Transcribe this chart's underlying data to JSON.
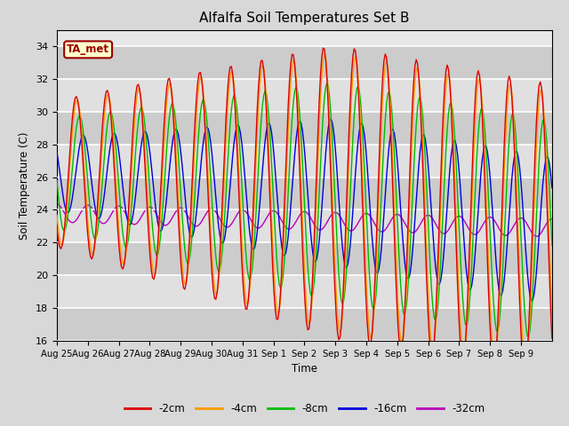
{
  "title": "Alfalfa Soil Temperatures Set B",
  "xlabel": "Time",
  "ylabel": "Soil Temperature (C)",
  "ylim": [
    16,
    35
  ],
  "yticks": [
    16,
    18,
    20,
    22,
    24,
    26,
    28,
    30,
    32,
    34
  ],
  "bg_color": "#d8d8d8",
  "plot_bg_color": "#e8e8e8",
  "line_colors": {
    "-2cm": "#dd0000",
    "-4cm": "#ff9900",
    "-8cm": "#00bb00",
    "-16cm": "#0000dd",
    "-32cm": "#bb00bb"
  },
  "legend_labels": [
    "-2cm",
    "-4cm",
    "-8cm",
    "-16cm",
    "-32cm"
  ],
  "annotation_text": "TA_met",
  "annotation_color": "#990000",
  "annotation_bg": "#ffffcc",
  "tick_labels": [
    "Aug 25",
    "Aug 26",
    "Aug 27",
    "Aug 28",
    "Aug 29",
    "Aug 30",
    "Aug 31",
    "Sep 1",
    "Sep 2",
    "Sep 3",
    "Sep 4",
    "Sep 5",
    "Sep 6",
    "Sep 7",
    "Sep 8",
    "Sep 9"
  ]
}
